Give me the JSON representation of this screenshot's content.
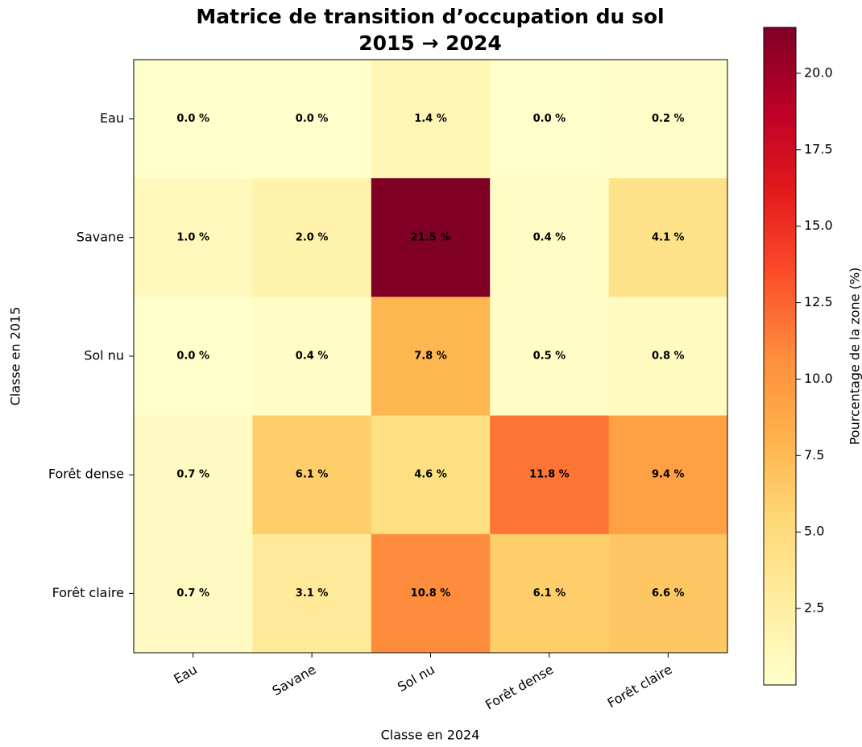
{
  "chart_data": {
    "type": "heatmap",
    "title": "Matrice de transition d’occupation du sol",
    "subtitle": "2015 → 2024",
    "xlabel": "Classe en 2024",
    "ylabel": "Classe en 2015",
    "colorbar_label": "Pourcentage de la zone (%)",
    "categories": [
      "Eau",
      "Savane",
      "Sol nu",
      "Forêt dense",
      "Forêt claire"
    ],
    "y_categories": [
      "Eau",
      "Savane",
      "Sol nu",
      "Forêt dense",
      "Forêt claire"
    ],
    "values": [
      [
        0.0,
        0.0,
        1.4,
        0.0,
        0.2
      ],
      [
        1.0,
        2.0,
        21.5,
        0.4,
        4.1
      ],
      [
        0.0,
        0.4,
        7.8,
        0.5,
        0.8
      ],
      [
        0.7,
        6.1,
        4.6,
        11.8,
        9.4
      ],
      [
        0.7,
        3.1,
        10.8,
        6.1,
        6.6
      ]
    ],
    "value_labels": [
      [
        "0.0 %",
        "0.0 %",
        "1.4 %",
        "0.0 %",
        "0.2 %"
      ],
      [
        "1.0 %",
        "2.0 %",
        "21.5 %",
        "0.4 %",
        "4.1 %"
      ],
      [
        "0.0 %",
        "0.4 %",
        "7.8 %",
        "0.5 %",
        "0.8 %"
      ],
      [
        "0.7 %",
        "6.1 %",
        "4.6 %",
        "11.8 %",
        "9.4 %"
      ],
      [
        "0.7 %",
        "3.1 %",
        "10.8 %",
        "6.1 %",
        "6.6 %"
      ]
    ],
    "clim": [
      0,
      21.5
    ],
    "cticks": [
      2.5,
      {
        "value": 5,
        "label": "5.0"
      },
      7.5,
      {
        "value": 10,
        "label": "10.0"
      },
      12.5,
      {
        "value": 15,
        "label": "15.0"
      },
      17.5,
      {
        "value": 20,
        "label": "20.0"
      }
    ],
    "colormap": [
      "#ffffcc",
      "#ffeda0",
      "#fed976",
      "#feb24c",
      "#fd8d3c",
      "#fc4e2a",
      "#e31a1c",
      "#bd0026",
      "#800026"
    ]
  }
}
